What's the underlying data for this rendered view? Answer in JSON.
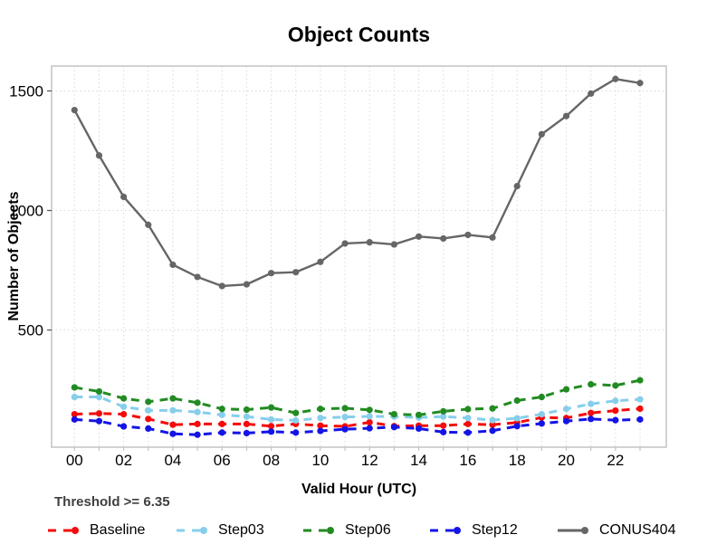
{
  "chart_data": {
    "type": "line",
    "title": "Object Counts",
    "xlabel": "Valid Hour (UTC)",
    "ylabel": "Number of Objects",
    "annotation": "Threshold >= 6.35",
    "x_hours": [
      "00",
      "01",
      "02",
      "03",
      "04",
      "05",
      "06",
      "07",
      "08",
      "09",
      "10",
      "11",
      "12",
      "13",
      "14",
      "15",
      "16",
      "17",
      "18",
      "19",
      "20",
      "21",
      "22",
      "23"
    ],
    "x_tick_labels": [
      "00",
      "02",
      "04",
      "06",
      "08",
      "10",
      "12",
      "14",
      "16",
      "18",
      "20",
      "22"
    ],
    "y_ticks": [
      500,
      1000,
      1500
    ],
    "ylim": [
      10,
      1604
    ],
    "grid": "dotted light-gray vertical line at every hour, dotted horizontal line at each y tick",
    "legend_position": "bottom",
    "series": [
      {
        "name": "Baseline",
        "color": "#f40b0b",
        "style": "dashed",
        "values": [
          148,
          151,
          148,
          128,
          104,
          107,
          107,
          107,
          98,
          107,
          100,
          97,
          114,
          98,
          100,
          100,
          107,
          104,
          113,
          134,
          132,
          153,
          163,
          171
        ]
      },
      {
        "name": "Step03",
        "color": "#87ceeb",
        "style": "dashed",
        "values": [
          220,
          220,
          179,
          164,
          164,
          157,
          145,
          138,
          126,
          122,
          132,
          136,
          139,
          138,
          134,
          138,
          132,
          123,
          131,
          148,
          170,
          191,
          204,
          210
        ]
      },
      {
        "name": "Step06",
        "color": "#228b22",
        "style": "dashed",
        "values": [
          260,
          243,
          214,
          200,
          214,
          196,
          170,
          167,
          176,
          153,
          170,
          173,
          166,
          148,
          145,
          160,
          169,
          172,
          205,
          220,
          252,
          273,
          268,
          290
        ]
      },
      {
        "name": "Step12",
        "color": "#1414e6",
        "style": "dashed",
        "values": [
          126,
          119,
          97,
          88,
          66,
          62,
          71,
          69,
          75,
          71,
          78,
          85,
          89,
          94,
          88,
          73,
          71,
          79,
          98,
          109,
          119,
          128,
          123,
          126
        ]
      },
      {
        "name": "CONUS404",
        "color": "#666666",
        "style": "solid",
        "values": [
          1420,
          1230,
          1057,
          940,
          773,
          722,
          684,
          691,
          738,
          742,
          785,
          862,
          867,
          858,
          891,
          883,
          898,
          887,
          1102,
          1319,
          1395,
          1489,
          1550,
          1533
        ]
      }
    ],
    "style_colors": {
      "grid": "#dadada",
      "frame": "#c3c3c3",
      "tick": "#555555",
      "tick_label": "#000000",
      "annotation_text": "#3f3f3f"
    }
  }
}
